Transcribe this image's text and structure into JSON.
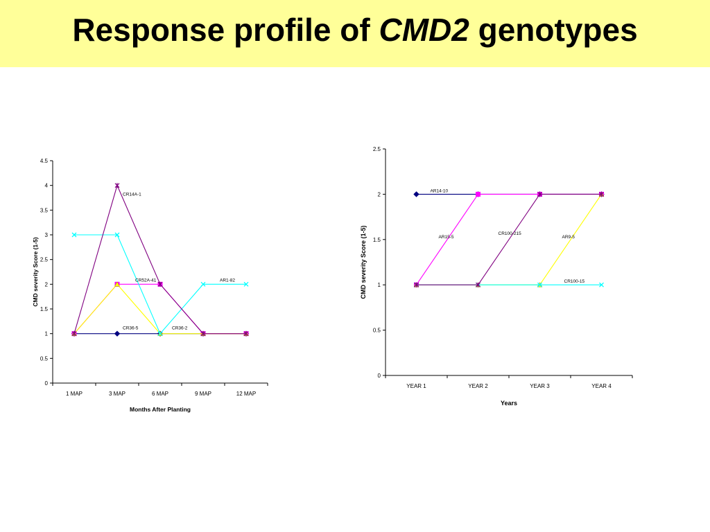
{
  "slide": {
    "title_pre": "Response profile of ",
    "title_em": "CMD2",
    "title_post": " genotypes",
    "background": "#ffff99"
  },
  "chart_data": [
    {
      "type": "line",
      "title": "",
      "xlabel": "Months After Planting",
      "ylabel": "CMD severity Score (1-5)",
      "ylim": [
        0,
        4.5
      ],
      "y_ticks": [
        "0",
        "0.5",
        "1",
        "1.5",
        "2",
        "2.5",
        "3",
        "3.5",
        "4",
        "4.5"
      ],
      "categories": [
        "1 MAP",
        "3 MAP",
        "6 MAP",
        "9 MAP",
        "12 MAP"
      ],
      "grid": false,
      "series": [
        {
          "name": "CR36-5",
          "values": [
            1,
            1,
            1,
            1,
            1
          ],
          "color": "#000080",
          "marker": "diamond"
        },
        {
          "name": "CR52A-41",
          "values": [
            1,
            2,
            2,
            1,
            1
          ],
          "color": "#ff00ff",
          "marker": "square"
        },
        {
          "name": "CR36-2",
          "values": [
            1,
            2,
            1,
            1,
            1
          ],
          "color": "#ffff00",
          "marker": "triangle"
        },
        {
          "name": "AR1-82",
          "values": [
            3,
            3,
            1,
            2,
            2
          ],
          "color": "#00ffff",
          "marker": "x"
        },
        {
          "name": "CR14A-1",
          "values": [
            1,
            4,
            2,
            1,
            1
          ],
          "color": "#800080",
          "marker": "star"
        }
      ]
    },
    {
      "type": "line",
      "title": "",
      "xlabel": "Years",
      "ylabel": "CMD severity Score (1-5)",
      "ylim": [
        0,
        2.5
      ],
      "y_ticks": [
        "0",
        "0.5",
        "1",
        "1.5",
        "2",
        "2.5"
      ],
      "categories": [
        "YEAR 1",
        "YEAR 2",
        "YEAR 3",
        "YEAR 4"
      ],
      "grid": false,
      "series": [
        {
          "name": "AR14-10",
          "values": [
            2,
            2,
            2,
            2
          ],
          "color": "#000080",
          "marker": "diamond"
        },
        {
          "name": "AR15-5",
          "values": [
            1,
            2,
            2,
            2
          ],
          "color": "#ff00ff",
          "marker": "square"
        },
        {
          "name": "AR9-5",
          "values": [
            1,
            1,
            1,
            2
          ],
          "color": "#ffff00",
          "marker": "triangle"
        },
        {
          "name": "CR100-15",
          "values": [
            1,
            1,
            1,
            1
          ],
          "color": "#00ffff",
          "marker": "x"
        },
        {
          "name": "CR100-215",
          "values": [
            1,
            1,
            2,
            2
          ],
          "color": "#800080",
          "marker": "star"
        }
      ]
    }
  ]
}
